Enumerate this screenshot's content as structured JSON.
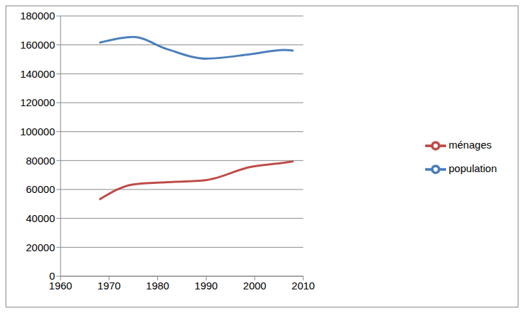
{
  "chart_data": {
    "type": "line",
    "x": [
      1968,
      1975,
      1982,
      1990,
      1999,
      2006,
      2008
    ],
    "series": [
      {
        "name": "population",
        "color": "#4a7ebb",
        "values": [
          161500,
          165500,
          157000,
          150500,
          153500,
          156500,
          156000
        ]
      },
      {
        "name": "ménages",
        "color": "#be4b48",
        "values": [
          53000,
          63500,
          65000,
          66500,
          75500,
          78500,
          79500
        ]
      }
    ],
    "xlim": [
      1960,
      2010
    ],
    "xticks": [
      1960,
      1970,
      1980,
      1990,
      2000,
      2010
    ],
    "ylim": [
      0,
      180000
    ],
    "yticks": [
      0,
      20000,
      40000,
      60000,
      80000,
      100000,
      120000,
      140000,
      160000,
      180000
    ],
    "grid": true,
    "legend": "right"
  }
}
